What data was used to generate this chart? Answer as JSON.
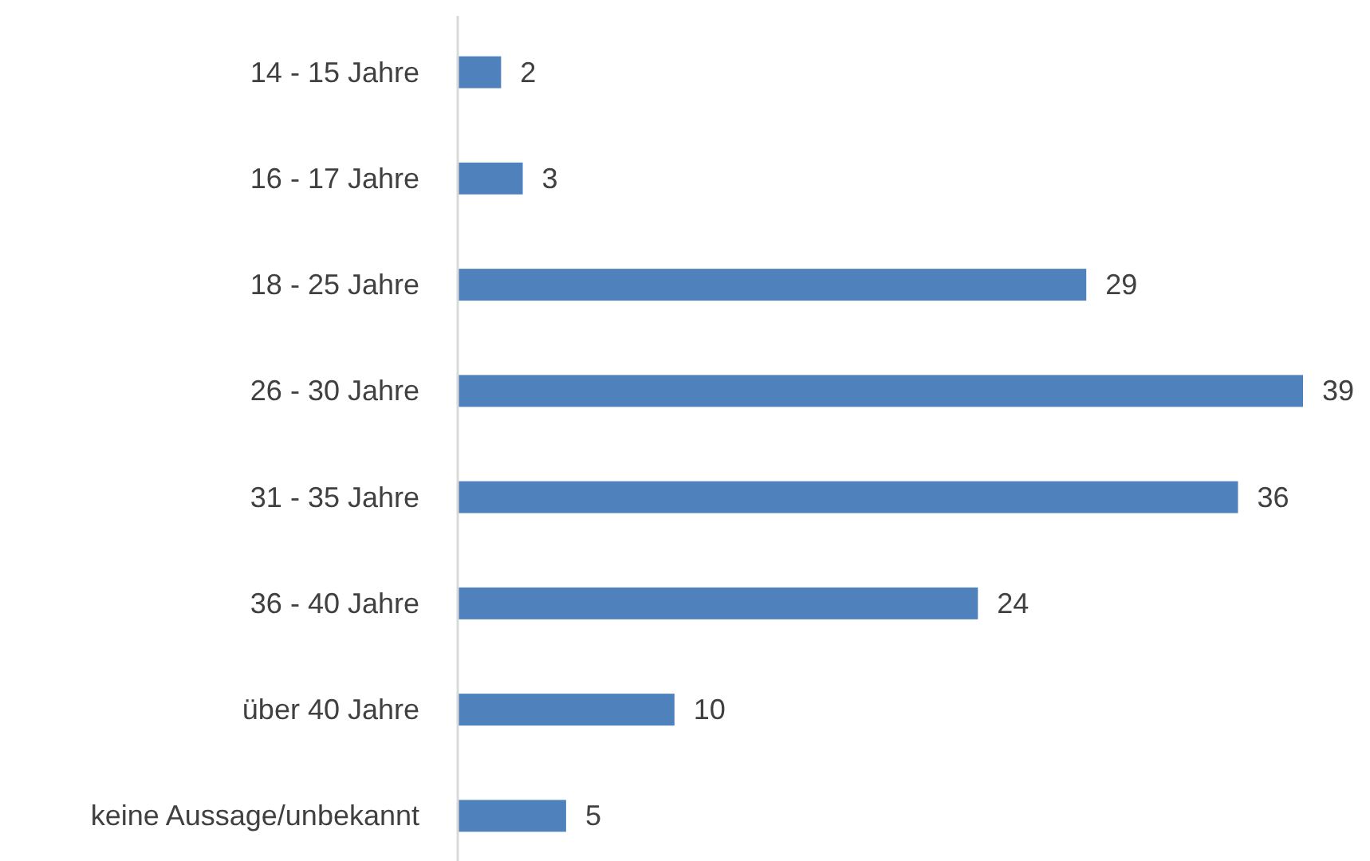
{
  "chart_data": {
    "type": "bar",
    "orientation": "horizontal",
    "categories": [
      "14 - 15 Jahre",
      "16 - 17 Jahre",
      "18 - 25 Jahre",
      "26 - 30 Jahre",
      "31 - 35 Jahre",
      "36 - 40 Jahre",
      "über 40 Jahre",
      "keine Aussage/unbekannt"
    ],
    "values": [
      2,
      3,
      29,
      39,
      36,
      24,
      10,
      5
    ],
    "color": "#4f81bd",
    "data_labels": true
  }
}
